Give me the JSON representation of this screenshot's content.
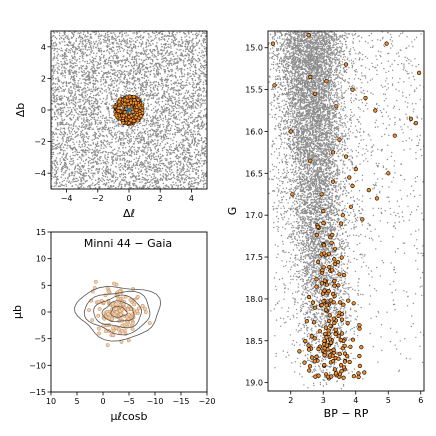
{
  "chart_data": [
    {
      "type": "scatter",
      "xlabel": "Δℓ",
      "ylabel": "Δb",
      "xlim": [
        -5,
        5
      ],
      "ylim": [
        -5,
        5
      ],
      "xticks": [
        {
          "v": -4,
          "label": "−4"
        },
        {
          "v": -2,
          "label": "−2"
        },
        {
          "v": 0,
          "label": "0"
        },
        {
          "v": 2,
          "label": "2"
        },
        {
          "v": 4,
          "label": "4"
        }
      ],
      "yticks": [
        {
          "v": -4,
          "label": "−4"
        },
        {
          "v": -2,
          "label": "−2"
        },
        {
          "v": 0,
          "label": "0"
        },
        {
          "v": 2,
          "label": "2"
        },
        {
          "v": 4,
          "label": "4"
        }
      ],
      "background": {
        "count": 5200,
        "distribution": "uniform",
        "color": "#8c8c8c"
      },
      "members": {
        "count": 260,
        "center": [
          0,
          0
        ],
        "radius": 0.9,
        "fill": "#f28e2b",
        "edge": "#000000"
      },
      "center_marker": {
        "x": 0,
        "y": 0,
        "symbol": "x",
        "color": "#1f77b4"
      }
    },
    {
      "type": "scatter",
      "title": "Minni 44  −  Gaia",
      "xlabel": "μℓcosb",
      "ylabel": "μb",
      "xlim": [
        10,
        -20
      ],
      "ylim": [
        -15,
        15
      ],
      "xticks": [
        {
          "v": 10,
          "label": "10"
        },
        {
          "v": 5,
          "label": "5"
        },
        {
          "v": 0,
          "label": "0"
        },
        {
          "v": -5,
          "label": "−5"
        },
        {
          "v": -10,
          "label": "−10"
        },
        {
          "v": -15,
          "label": "−15"
        },
        {
          "v": -20,
          "label": "−20"
        }
      ],
      "yticks": [
        {
          "v": -15,
          "label": "−15"
        },
        {
          "v": -10,
          "label": "−10"
        },
        {
          "v": -5,
          "label": "−5"
        },
        {
          "v": 0,
          "label": "0"
        },
        {
          "v": 5,
          "label": "5"
        },
        {
          "v": 10,
          "label": "10"
        },
        {
          "v": 15,
          "label": "15"
        }
      ],
      "members": {
        "count": 160,
        "center": [
          -3,
          0
        ],
        "spread": [
          2.4,
          2.0
        ],
        "fill": "#f5cfa9",
        "edge": "#c08a5a"
      },
      "contours": {
        "center": [
          -3,
          0
        ],
        "levels": [
          [
            8,
            5
          ],
          [
            6.3,
            3.9
          ],
          [
            4.6,
            2.9
          ],
          [
            3.0,
            1.9
          ],
          [
            1.5,
            1.0
          ]
        ],
        "color": "#555555"
      }
    },
    {
      "type": "scatter",
      "xlabel": "BP − RP",
      "ylabel": "G",
      "xlim": [
        1.3,
        6.1
      ],
      "ylim": [
        19.1,
        14.8
      ],
      "xticks": [
        {
          "v": 2,
          "label": "2"
        },
        {
          "v": 3,
          "label": "3"
        },
        {
          "v": 4,
          "label": "4"
        },
        {
          "v": 5,
          "label": "5"
        },
        {
          "v": 6,
          "label": "6"
        }
      ],
      "yticks": [
        {
          "v": 15.0,
          "label": "15.0"
        },
        {
          "v": 15.5,
          "label": "15.5"
        },
        {
          "v": 16.0,
          "label": "16.0"
        },
        {
          "v": 16.5,
          "label": "16.5"
        },
        {
          "v": 17.0,
          "label": "17.0"
        },
        {
          "v": 17.5,
          "label": "17.5"
        },
        {
          "v": 18.0,
          "label": "18.0"
        },
        {
          "v": 18.5,
          "label": "18.5"
        },
        {
          "v": 19.0,
          "label": "19.0"
        }
      ],
      "background": {
        "count": 9000,
        "color": "#8c8c8c"
      },
      "members": {
        "fill": "#f28e2b",
        "edge": "#000000",
        "bright": [
          [
            1.45,
            14.95
          ],
          [
            2.55,
            14.85
          ],
          [
            4.95,
            14.95
          ],
          [
            5.95,
            15.3
          ],
          [
            1.5,
            15.45
          ],
          [
            2.6,
            15.35
          ],
          [
            3.7,
            15.2
          ],
          [
            3.1,
            15.4
          ],
          [
            3.9,
            15.5
          ],
          [
            2.75,
            15.55
          ],
          [
            3.4,
            15.7
          ],
          [
            4.3,
            15.6
          ],
          [
            4.6,
            15.75
          ],
          [
            5.7,
            15.85
          ],
          [
            5.85,
            15.9
          ],
          [
            2.0,
            16.0
          ],
          [
            3.5,
            16.1
          ],
          [
            5.2,
            16.05
          ],
          [
            3.3,
            16.25
          ],
          [
            2.6,
            16.35
          ],
          [
            3.7,
            16.3
          ],
          [
            4.0,
            16.45
          ],
          [
            3.8,
            16.55
          ],
          [
            3.3,
            16.6
          ],
          [
            3.9,
            16.65
          ],
          [
            5.0,
            16.5
          ],
          [
            2.95,
            16.75
          ],
          [
            4.4,
            16.7
          ],
          [
            3.85,
            16.9
          ],
          [
            3.6,
            17.0
          ],
          [
            2.05,
            16.75
          ],
          [
            4.65,
            16.8
          ],
          [
            3.0,
            16.95
          ],
          [
            3.55,
            17.1
          ],
          [
            4.2,
            17.05
          ]
        ],
        "rgb": {
          "count": 170,
          "start": [
            3.0,
            17.0
          ],
          "end": [
            3.35,
            18.95
          ],
          "spread": 0.3
        }
      }
    }
  ]
}
